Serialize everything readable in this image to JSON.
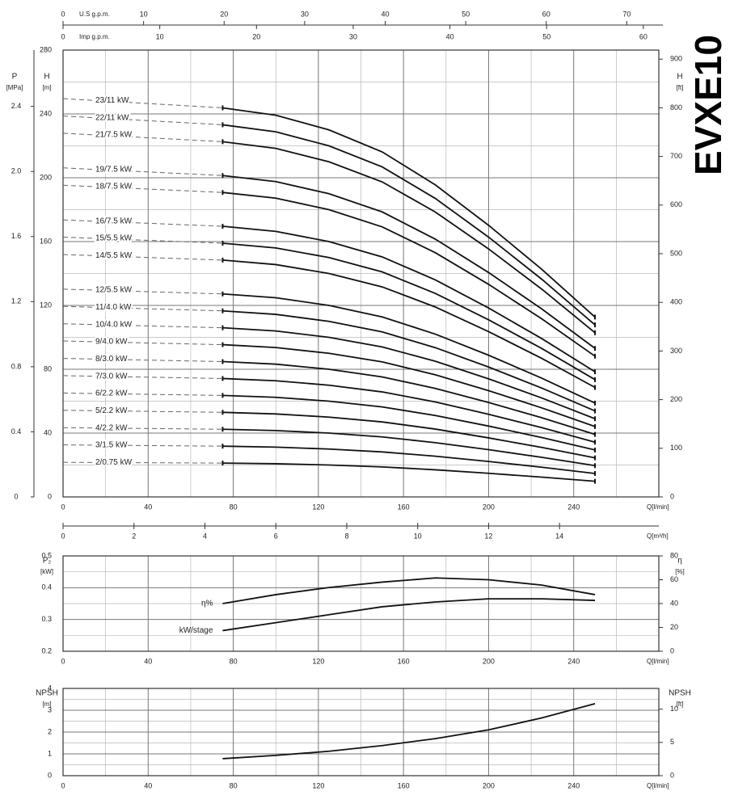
{
  "title": "EVXE10",
  "chart_data": [
    {
      "type": "line",
      "solid_from": 75,
      "x": [
        0,
        75,
        100,
        125,
        150,
        175,
        200,
        225,
        250
      ],
      "xlim": [
        0,
        280
      ],
      "xticks": [
        0,
        40,
        80,
        120,
        160,
        200,
        240
      ],
      "x_minor_ticks": [
        20,
        60,
        100,
        140,
        180,
        220,
        260
      ],
      "ylim": [
        0,
        280
      ],
      "yticks": [
        0,
        40,
        80,
        120,
        160,
        200,
        240,
        280
      ],
      "y_minor_ticks": [
        20,
        60,
        100,
        140,
        180,
        220,
        260
      ],
      "x_label": "Q[l/min]",
      "y_label": "H",
      "y_unit": "[m]",
      "y2lim": [
        0,
        918.6
      ],
      "y2ticks": [
        0,
        100,
        200,
        300,
        400,
        500,
        600,
        700,
        800,
        900
      ],
      "y2_label": "H",
      "y2_unit": "[ft]",
      "p_axis": {
        "label": "P",
        "unit": "[MPa]",
        "lim": [
          0,
          2.746
        ],
        "ticks": [
          0,
          0.4,
          0.8,
          1.2,
          1.6,
          {
            "value": 2,
            "label": "2.0"
          },
          2.4
        ]
      },
      "top_axes": [
        {
          "label": "U.S g.p.m.",
          "lim": [
            0,
            73.98
          ],
          "ticks": [
            0,
            10,
            20,
            30,
            40,
            50,
            60,
            70
          ]
        },
        {
          "label": "Imp g.p.m.",
          "lim": [
            0,
            61.6
          ],
          "ticks": [
            0,
            10,
            20,
            30,
            40,
            50,
            60
          ]
        }
      ],
      "bottom_axis": {
        "label": "Q[m³/h]",
        "lim": [
          0,
          16.8
        ],
        "ticks": [
          0,
          2,
          4,
          6,
          8,
          10,
          12,
          14
        ]
      },
      "color": "#111111",
      "series": [
        {
          "name": "23/11 kW",
          "values": [
            249.6,
            243.8,
            239.2,
            230,
            216.2,
            195.5,
            170.2,
            142.6,
            112.7
          ]
        },
        {
          "name": "22/11 kW",
          "values": [
            238.7,
            233.2,
            228.8,
            220,
            206.8,
            187,
            162.8,
            136.4,
            107.8
          ]
        },
        {
          "name": "21/7.5 kW",
          "values": [
            227.9,
            222.6,
            218.4,
            210,
            197.4,
            178.5,
            155.4,
            130.2,
            102.9
          ]
        },
        {
          "name": "19/7.5 kW",
          "values": [
            206.2,
            201.4,
            197.6,
            190,
            178.6,
            161.5,
            140.6,
            117.8,
            93.1
          ]
        },
        {
          "name": "18/7.5 kW",
          "values": [
            195.3,
            190.8,
            187.2,
            180,
            169.2,
            153,
            133.2,
            111.6,
            88.2
          ]
        },
        {
          "name": "16/7.5 kW",
          "values": [
            173.6,
            169.6,
            166.4,
            160,
            150.4,
            136,
            118.4,
            99.2,
            78.4
          ]
        },
        {
          "name": "15/5.5 kW",
          "values": [
            162.8,
            159,
            156,
            150,
            141,
            127.5,
            111,
            93,
            73.5
          ]
        },
        {
          "name": "14/5.5 kW",
          "values": [
            151.9,
            148.4,
            145.6,
            140,
            131.6,
            119,
            103.6,
            86.8,
            68.6
          ]
        },
        {
          "name": "12/5.5 kW",
          "values": [
            130.2,
            127.2,
            124.8,
            120,
            112.8,
            102,
            88.8,
            74.4,
            58.8
          ]
        },
        {
          "name": "11/4.0 kW",
          "values": [
            119.4,
            116.6,
            114.4,
            110,
            103.4,
            93.5,
            81.4,
            68.2,
            53.9
          ]
        },
        {
          "name": "10/4.0 kW",
          "values": [
            108.5,
            106,
            104,
            100,
            94,
            85,
            74,
            62,
            49
          ]
        },
        {
          "name": "9/4.0 kW",
          "values": [
            97.7,
            95.4,
            93.6,
            90,
            84.6,
            76.5,
            66.6,
            55.8,
            44.1
          ]
        },
        {
          "name": "8/3.0 kW",
          "values": [
            86.8,
            84.8,
            83.2,
            80,
            75.2,
            68,
            59.2,
            49.6,
            39.2
          ]
        },
        {
          "name": "7/3.0 kW",
          "values": [
            76,
            74.2,
            72.8,
            70,
            65.8,
            59.5,
            51.8,
            43.4,
            34.3
          ]
        },
        {
          "name": "6/2.2 kW",
          "values": [
            65.1,
            63.6,
            62.4,
            60,
            56.4,
            51,
            44.4,
            37.2,
            29.4
          ]
        },
        {
          "name": "5/2.2 kW",
          "values": [
            54.3,
            53,
            52,
            50,
            47,
            42.5,
            37,
            31,
            24.5
          ]
        },
        {
          "name": "4/2.2 kW",
          "values": [
            43.4,
            42.4,
            41.6,
            40,
            37.6,
            34,
            29.6,
            24.8,
            19.6
          ]
        },
        {
          "name": "3/1.5 kW",
          "values": [
            32.6,
            31.8,
            31.2,
            30,
            28.2,
            25.5,
            22.2,
            18.6,
            14.7
          ]
        },
        {
          "name": "2/0.75 kW",
          "values": [
            21.7,
            21.2,
            20.8,
            20,
            18.8,
            17,
            14.8,
            12.4,
            9.8
          ]
        }
      ]
    },
    {
      "type": "line",
      "x": [
        75,
        100,
        125,
        150,
        175,
        200,
        225,
        250
      ],
      "xlim": [
        0,
        280
      ],
      "xticks": [
        0,
        40,
        80,
        120,
        160,
        200,
        240
      ],
      "x_minor_ticks": [
        20,
        60,
        100,
        140,
        180,
        220,
        260
      ],
      "ylim": [
        0.2,
        0.5
      ],
      "yticks": [
        0.2,
        0.3,
        0.4,
        0.5
      ],
      "y_minor_ticks": [
        0.25,
        0.35,
        0.45
      ],
      "x_label": "Q[l/min]",
      "y_label": "P₂",
      "y_unit": "[kW]",
      "y2lim": [
        0,
        80
      ],
      "y2ticks": [
        0,
        20,
        40,
        60,
        80
      ],
      "y2_label": "η",
      "y2_unit": "[%]",
      "color": "#111111",
      "series": [
        {
          "name": "η%",
          "axis": "y2",
          "values": [
            40,
            47.5,
            53.5,
            58,
            61.5,
            60,
            55.5,
            47.5
          ]
        },
        {
          "name": "kW/stage",
          "values": [
            0.265,
            0.29,
            0.315,
            0.34,
            0.355,
            0.365,
            0.365,
            0.36
          ]
        }
      ]
    },
    {
      "type": "line",
      "x": [
        75,
        100,
        125,
        150,
        175,
        200,
        225,
        250
      ],
      "xlim": [
        0,
        280
      ],
      "xticks": [
        0,
        40,
        80,
        120,
        160,
        200,
        240
      ],
      "x_minor_ticks": [
        20,
        60,
        100,
        140,
        180,
        220,
        260
      ],
      "ylim": [
        0,
        4
      ],
      "yticks": [
        0,
        1,
        2,
        3,
        4
      ],
      "y_minor_ticks": [
        0.5,
        1.5,
        2.5,
        3.5
      ],
      "x_label": "Q[l/min]",
      "y_label": "NPSH",
      "y_unit": "[m]",
      "y2lim": [
        0,
        13.12
      ],
      "y2ticks": [
        0,
        5,
        10
      ],
      "y2_label": "NPSH",
      "y2_unit": "[ft]",
      "color": "#111111",
      "values": [
        0.78,
        0.93,
        1.12,
        1.38,
        1.7,
        2.1,
        2.65,
        3.3
      ]
    }
  ]
}
